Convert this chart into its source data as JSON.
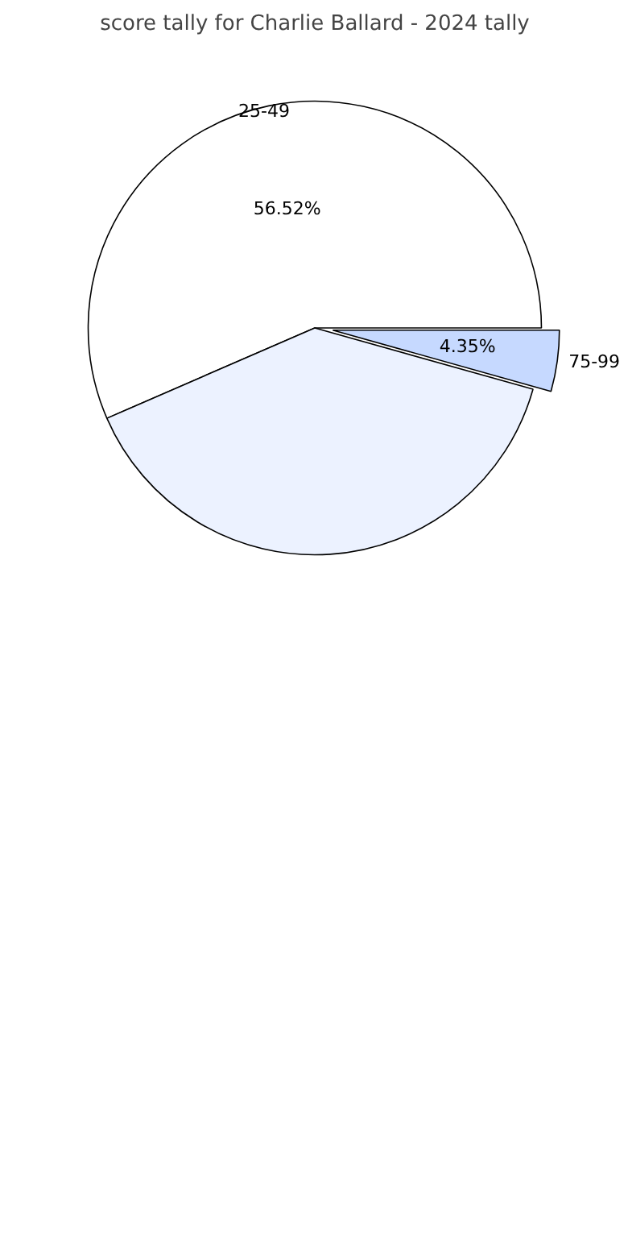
{
  "chart_data": {
    "type": "pie",
    "title": "score tally for Charlie Ballard - 2024 tally",
    "categories": [
      "25-49",
      null,
      "75-99"
    ],
    "values": [
      56.52,
      39.13,
      4.35
    ],
    "colors": [
      "#ffffff",
      "#ecf2ff",
      "#c6d9ff"
    ],
    "value_labels": [
      "56.52%",
      null,
      "4.35%"
    ]
  }
}
